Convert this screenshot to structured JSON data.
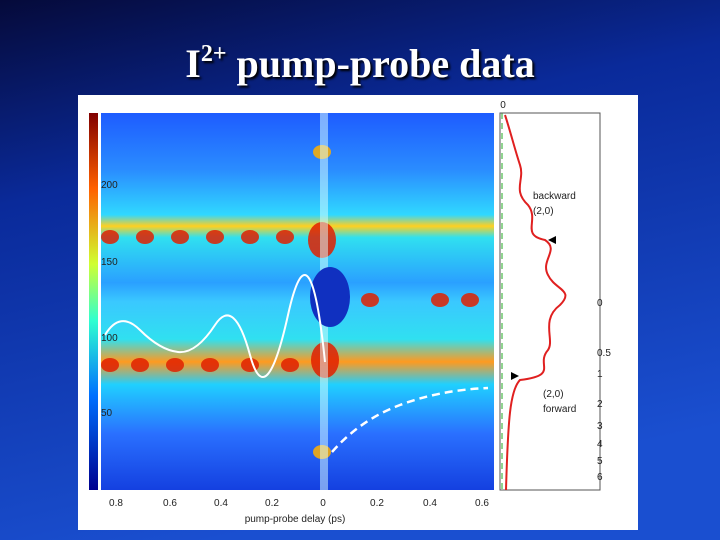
{
  "header": {
    "title": "I",
    "superscript": "2+",
    "title_rest": " pump-probe data"
  },
  "figure": {
    "colorbar_ticks": [
      "200",
      "150",
      "100",
      "50"
    ],
    "x_ticks": [
      "0.8",
      "0.6",
      "0.4",
      "0.2",
      "0",
      "0.2",
      "0.4",
      "0.6"
    ],
    "x_label": "pump-probe delay (ps)",
    "right_top_tick": "0",
    "right_ticks": [
      "0",
      "0.5",
      "1",
      "2",
      "3",
      "4",
      "5",
      "6"
    ],
    "annotations": [
      "backward",
      "(2,0)",
      "(2,0)",
      "forward"
    ]
  }
}
